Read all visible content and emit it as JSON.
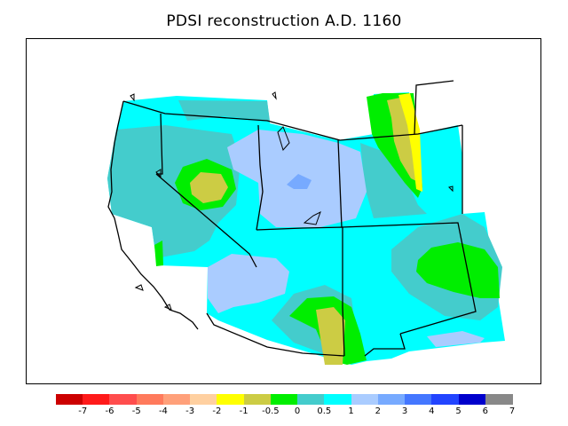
{
  "title": "PDSI reconstruction A.D. 1160",
  "legend": {
    "colors": [
      "#cc0000",
      "#ff1a1a",
      "#ff4d4d",
      "#ff7a5c",
      "#ffa07a",
      "#ffd0a0",
      "#ffff00",
      "#cccc44",
      "#00ee00",
      "#44cccc",
      "#00ffff",
      "#aaccff",
      "#77aaff",
      "#4477ff",
      "#2244ff",
      "#0000cc",
      "#888888"
    ],
    "labels": [
      "-7",
      "-6",
      "-5",
      "-4",
      "-3",
      "-2",
      "-1",
      "-0.5",
      "0",
      "0.5",
      "1",
      "2",
      "3",
      "4",
      "5",
      "6",
      "7"
    ]
  },
  "palette": {
    "cyan": "#00ffff",
    "teal": "#44cccc",
    "light_blue": "#aaccff",
    "mid_blue": "#77aaff",
    "green": "#00ee00",
    "olive": "#cccc44",
    "yellow": "#ffff00"
  }
}
